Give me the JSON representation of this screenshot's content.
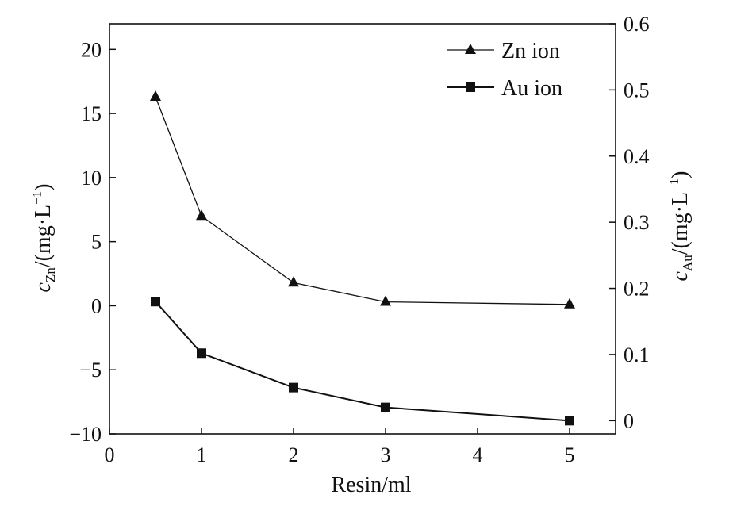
{
  "chart_data": {
    "type": "line",
    "x_axis": {
      "label": "Resin/ml",
      "range": [
        0,
        5.5
      ],
      "ticks": [
        0,
        1,
        2,
        3,
        4,
        5
      ],
      "tick_labels": [
        "0",
        "1",
        "2",
        "3",
        "4",
        "5"
      ]
    },
    "y_axis_left": {
      "label_var": "c",
      "label_sub": "Zn",
      "label_unit": "/(mg·L",
      "label_sup": "−1",
      "label_close": ")",
      "range": [
        -10,
        22
      ],
      "ticks": [
        -10,
        -5,
        0,
        5,
        10,
        15,
        20
      ],
      "tick_labels": [
        "−10",
        "−5",
        "0",
        "5",
        "10",
        "15",
        "20"
      ]
    },
    "y_axis_right": {
      "label_var": "c",
      "label_sub": "Au",
      "label_unit": "/(mg·L",
      "label_sup": "−1",
      "label_close": ")",
      "range": [
        -0.02,
        0.6
      ],
      "ticks": [
        0,
        0.1,
        0.2,
        0.3,
        0.4,
        0.5,
        0.6
      ],
      "tick_labels": [
        "0",
        "0.1",
        "0.2",
        "0.3",
        "0.4",
        "0.5",
        "0.6"
      ]
    },
    "series": [
      {
        "name": "Zn ion",
        "axis": "left",
        "marker": "triangle",
        "x": [
          0.5,
          1,
          2,
          3,
          5
        ],
        "y": [
          16.3,
          7.0,
          1.8,
          0.3,
          0.1
        ]
      },
      {
        "name": "Au ion",
        "axis": "right",
        "marker": "square",
        "x": [
          0.5,
          1,
          2,
          3,
          5
        ],
        "y": [
          0.18,
          0.102,
          0.05,
          0.02,
          0.0
        ]
      }
    ],
    "legend_position": "top-right",
    "grid": false
  }
}
